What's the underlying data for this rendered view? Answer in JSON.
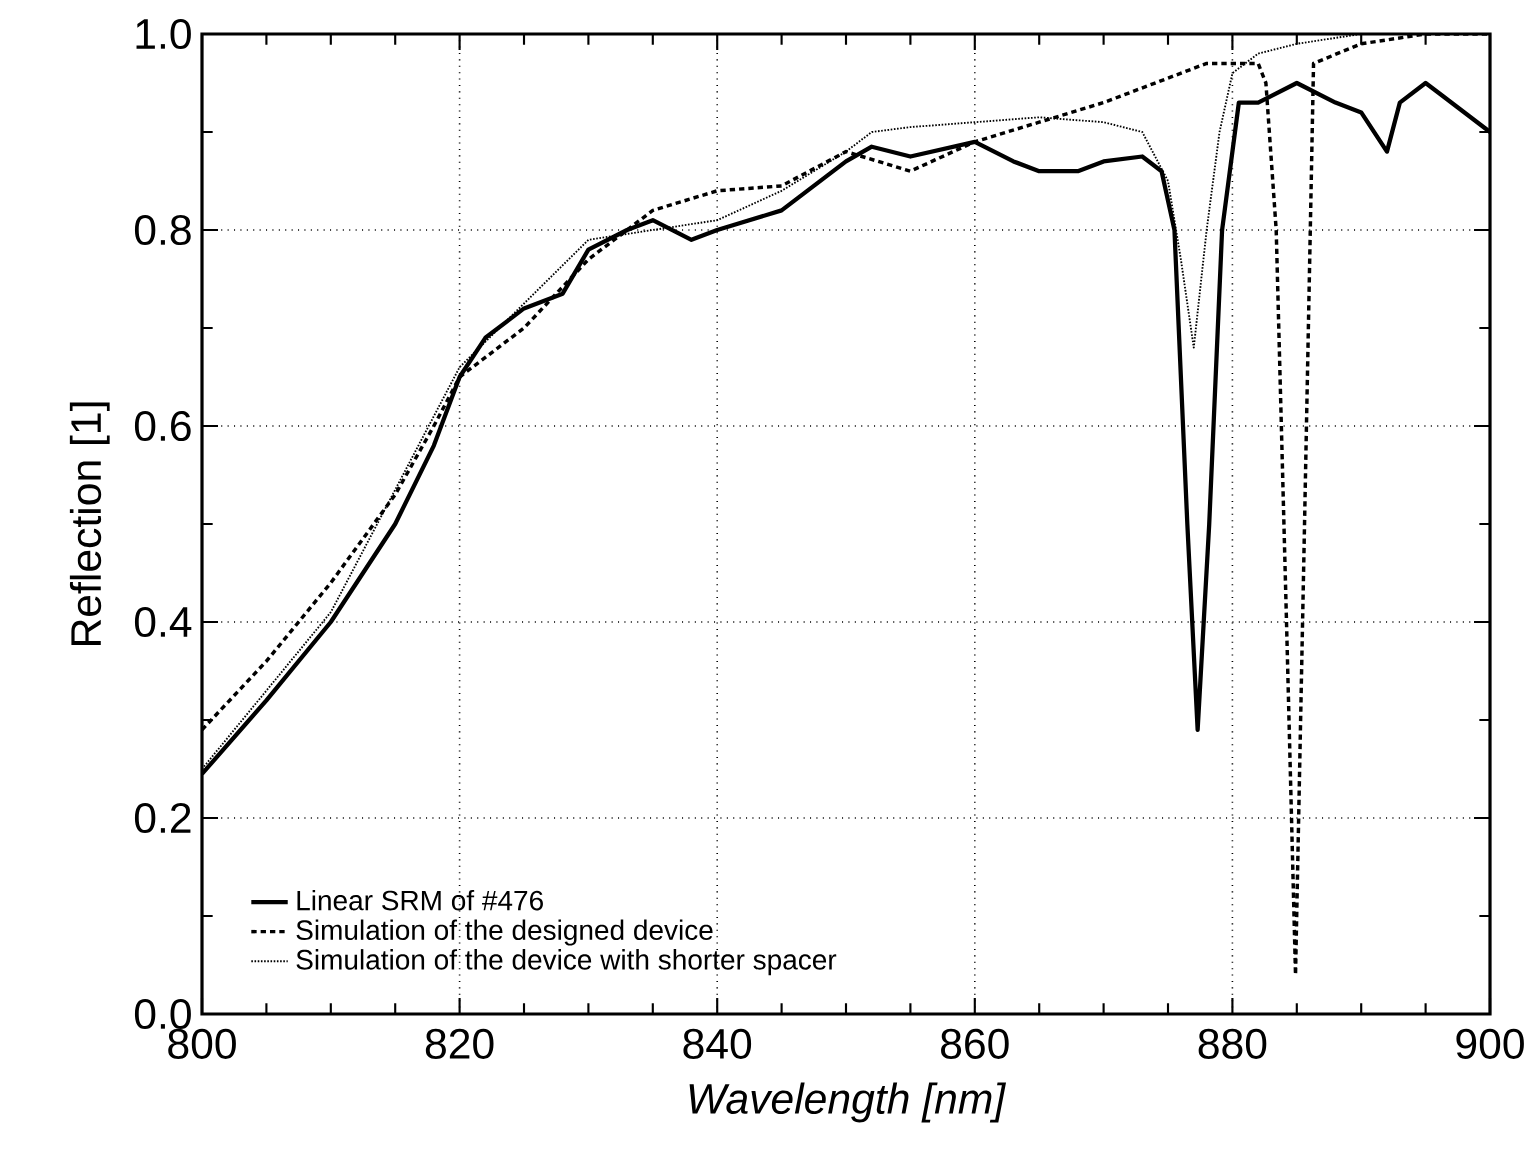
{
  "chart_data": {
    "type": "line",
    "xlabel": "*Wavelength [nm]*",
    "ylabel": "Reflection [1]",
    "xlim": [
      800,
      900
    ],
    "ylim": [
      0,
      1
    ],
    "xticks": [
      800,
      820,
      840,
      860,
      880,
      900
    ],
    "yticks": [
      {
        "value": 0,
        "label": "0.0"
      },
      {
        "value": 0.2,
        "label": "0.2"
      },
      {
        "value": 0.4,
        "label": "0.4"
      },
      {
        "value": 0.6,
        "label": "0.6"
      },
      {
        "value": 0.8,
        "label": "0.8"
      },
      {
        "value": 1,
        "label": "1.0"
      }
    ],
    "grid": true,
    "legend": "bottom left",
    "series": [
      {
        "name": "Linear SRM of #476",
        "color": "#000000",
        "line_style": "solid",
        "x": [
          800,
          805,
          810,
          815,
          818,
          820,
          822,
          825,
          828,
          830,
          833,
          835,
          838,
          840,
          845,
          850,
          852,
          855,
          860,
          863,
          865,
          868,
          870,
          873,
          874.5,
          875.5,
          876.5,
          877.3,
          878.2,
          879.2,
          880.5,
          882,
          885,
          888,
          890,
          892,
          893,
          895,
          896,
          900
        ],
        "values": [
          0.245,
          0.32,
          0.4,
          0.5,
          0.58,
          0.65,
          0.69,
          0.72,
          0.735,
          0.78,
          0.8,
          0.81,
          0.79,
          0.8,
          0.82,
          0.87,
          0.885,
          0.875,
          0.89,
          0.87,
          0.86,
          0.86,
          0.87,
          0.875,
          0.86,
          0.8,
          0.5,
          0.29,
          0.5,
          0.8,
          0.93,
          0.93,
          0.95,
          0.93,
          0.92,
          0.88,
          0.93,
          0.95,
          0.94,
          0.9
        ]
      },
      {
        "name": "Simulation of the designed device",
        "color": "#000000",
        "line_style": "dashed",
        "x": [
          800,
          805,
          810,
          815,
          818,
          820,
          825,
          830,
          835,
          840,
          845,
          850,
          855,
          860,
          865,
          870,
          874,
          878,
          880,
          882,
          882.6,
          883.4,
          884.2,
          884.9,
          885.6,
          886.3,
          890,
          895,
          900
        ],
        "values": [
          0.29,
          0.36,
          0.44,
          0.53,
          0.6,
          0.65,
          0.7,
          0.77,
          0.82,
          0.84,
          0.845,
          0.88,
          0.86,
          0.89,
          0.91,
          0.93,
          0.95,
          0.97,
          0.97,
          0.97,
          0.95,
          0.8,
          0.4,
          0.04,
          0.5,
          0.97,
          0.99,
          1.0,
          1.0
        ]
      },
      {
        "name": "Simulation of the device with shorter spacer",
        "color": "#000000",
        "line_style": "dotted",
        "x": [
          800,
          810,
          820,
          830,
          840,
          845,
          850,
          852,
          855,
          860,
          865,
          870,
          873,
          875,
          876,
          877,
          878,
          879,
          880,
          882,
          885,
          890,
          900
        ],
        "values": [
          0.25,
          0.41,
          0.66,
          0.79,
          0.81,
          0.84,
          0.88,
          0.9,
          0.905,
          0.91,
          0.915,
          0.91,
          0.9,
          0.85,
          0.77,
          0.68,
          0.8,
          0.9,
          0.96,
          0.98,
          0.99,
          1.0,
          1.0
        ]
      }
    ]
  }
}
